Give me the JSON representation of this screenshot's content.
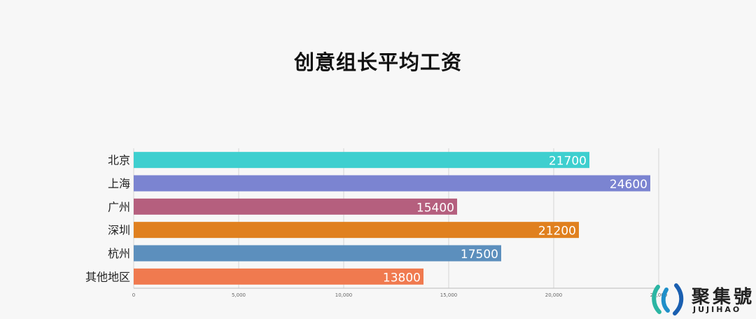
{
  "chart_data": {
    "type": "bar",
    "orientation": "horizontal",
    "title": "创意组长平均工资",
    "categories": [
      "北京",
      "上海",
      "广州",
      "深圳",
      "杭州",
      "其他地区"
    ],
    "values": [
      21700,
      24600,
      15400,
      21200,
      17500,
      13800
    ],
    "colors": [
      "#3ecfcf",
      "#7b84d1",
      "#b55f7e",
      "#e0801f",
      "#5c8fbd",
      "#f07a4f"
    ],
    "xlim": [
      0,
      25000
    ],
    "x_ticks": [
      0,
      5000,
      10000,
      15000,
      20000,
      25000
    ],
    "x_tick_labels": [
      "0",
      "5,000",
      "10,000",
      "15,000",
      "20,000",
      "25,000"
    ],
    "grid": true,
    "data_labels": true
  },
  "watermark": {
    "text": "聚集號",
    "sub": "JUJIHAO"
  }
}
